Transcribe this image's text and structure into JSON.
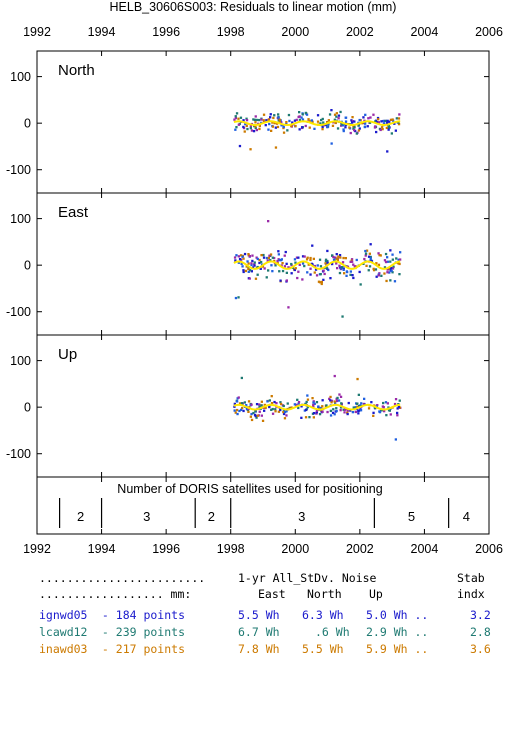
{
  "title": "HELB_30606S003: Residuals to linear motion (mm)",
  "colors": {
    "ignwd05": "#1a1acc",
    "lcawd12": "#1f7a72",
    "inawd03": "#cc7a00",
    "extra_blue": "#2060e0",
    "extra_purple": "#9a2aa8",
    "trend": "#ffe800",
    "axis": "#000000"
  },
  "chart_data": {
    "type": "scatter",
    "title": "HELB_30606S003: Residuals to linear motion (mm)",
    "x_ticks": [
      "1992",
      "1994",
      "1996",
      "1998",
      "2000",
      "2002",
      "2004",
      "2006"
    ],
    "xlim": [
      1992,
      2006
    ],
    "panels": [
      {
        "name": "North",
        "ylim": [
          -150,
          155
        ],
        "y_ticks": [
          100,
          0,
          -100
        ],
        "scatter_std": 18,
        "trend_amp": 4,
        "points": 260
      },
      {
        "name": "East",
        "ylim": [
          -150,
          155
        ],
        "y_ticks": [
          100,
          0,
          -100
        ],
        "scatter_std": 30,
        "trend_amp": 8,
        "points": 280
      },
      {
        "name": "Up",
        "ylim": [
          -150,
          155
        ],
        "y_ticks": [
          100,
          0,
          -100
        ],
        "scatter_std": 20,
        "trend_amp": 5,
        "points": 260
      }
    ],
    "data_span": [
      1998.1,
      2003.25
    ],
    "satellites": {
      "title": "Number of DORIS satellites used for positioning",
      "boundaries": [
        1992.7,
        1994.0,
        1996.9,
        1998.0,
        2002.45,
        2004.75
      ],
      "segments": [
        {
          "label": "2",
          "x": 1993.35
        },
        {
          "label": "3",
          "x": 1995.4
        },
        {
          "label": "2",
          "x": 1997.4
        },
        {
          "label": "3",
          "x": 2000.2
        },
        {
          "label": "5",
          "x": 2003.6
        },
        {
          "label": "4",
          "x": 2005.3
        }
      ]
    }
  },
  "stats": {
    "header1": {
      "dots": "........................",
      "label": "1-yr All_StDv. Noise",
      "stab": "Stab"
    },
    "header2": {
      "dots": ".................. mm:",
      "east": "East",
      "north": "North",
      "up": "Up",
      "indx": "indx"
    },
    "rows": [
      {
        "series": "ignwd05",
        "points": " - 184 points",
        "east": "5.5 Wh",
        "north": "6.3 Wh",
        "up": "5.0 Wh ..",
        "stab": "3.2"
      },
      {
        "series": "lcawd12",
        "points": " - 239 points",
        "east": "6.7 Wh",
        "north": ".6 Wh",
        "up": "2.9 Wh ..",
        "stab": "2.8"
      },
      {
        "series": "inawd03",
        "points": " - 217 points",
        "east": "7.8 Wh",
        "north": "5.5 Wh",
        "up": "5.9 Wh ..",
        "stab": "3.6"
      }
    ]
  }
}
